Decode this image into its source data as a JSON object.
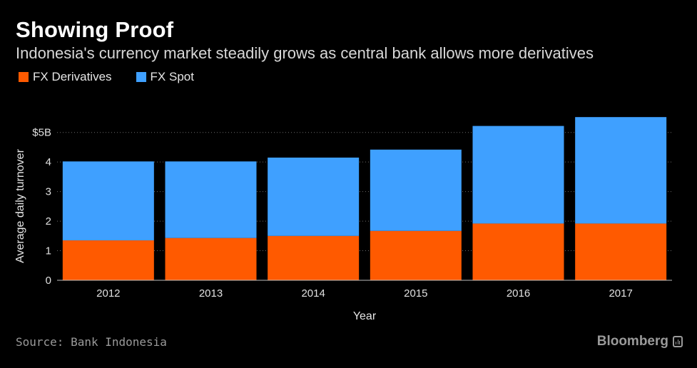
{
  "header": {
    "title": "Showing Proof",
    "subtitle": "Indonesia's currency market steadily grows as central bank allows more derivatives"
  },
  "footer": {
    "source": "Source: Bank Indonesia",
    "brand": "Bloomberg"
  },
  "colors": {
    "derivatives": "#ff5a00",
    "spot": "#3fa0ff",
    "background": "#000000"
  },
  "chart_data": {
    "type": "bar",
    "stacked": true,
    "categories": [
      "2012",
      "2013",
      "2014",
      "2015",
      "2016",
      "2017"
    ],
    "series": [
      {
        "name": "FX Derivatives",
        "values": [
          1.35,
          1.43,
          1.5,
          1.67,
          1.92,
          1.92
        ]
      },
      {
        "name": "FX Spot",
        "values": [
          2.67,
          2.59,
          2.65,
          2.75,
          3.3,
          3.6
        ]
      }
    ],
    "xlabel": "Year",
    "ylabel": "Average daily turnover",
    "ylim": [
      0,
      5.5
    ],
    "yticks": [
      0,
      1,
      2,
      3,
      4,
      5
    ],
    "ytick_labels": [
      "0",
      "1",
      "2",
      "3",
      "4",
      "$5B"
    ],
    "grid": true,
    "legend": "top-left"
  }
}
